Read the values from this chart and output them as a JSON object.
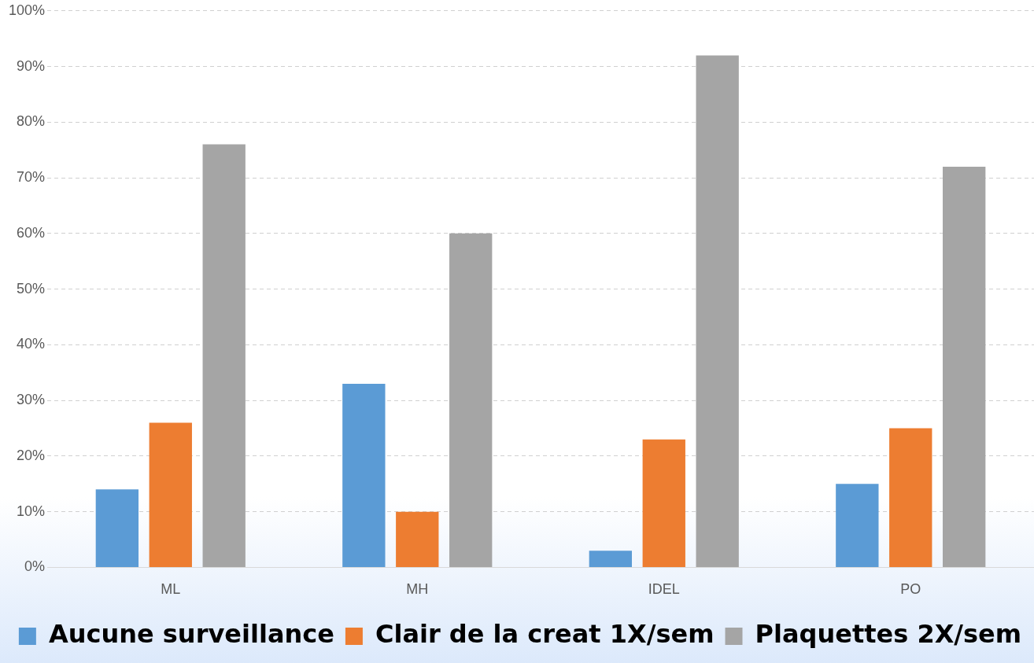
{
  "chart_data": {
    "type": "bar",
    "categories": [
      "ML",
      "MH",
      "IDEL",
      "PO"
    ],
    "series": [
      {
        "name": "Aucune surveillance",
        "color": "#5b9bd5",
        "values": [
          14,
          33,
          3,
          15
        ]
      },
      {
        "name": "Clair de la creat 1X/sem",
        "color": "#ed7d31",
        "values": [
          26,
          10,
          23,
          25
        ]
      },
      {
        "name": "Plaquettes 2X/sem",
        "color": "#a5a5a5",
        "values": [
          76,
          60,
          92,
          72
        ]
      }
    ],
    "ylim": [
      0,
      100
    ],
    "yticks": [
      {
        "value": 0,
        "label": "0%"
      },
      {
        "value": 10,
        "label": "10%"
      },
      {
        "value": 20,
        "label": "20%"
      },
      {
        "value": 30,
        "label": "30%"
      },
      {
        "value": 40,
        "label": "40%"
      },
      {
        "value": 50,
        "label": "50%"
      },
      {
        "value": 60,
        "label": "60%"
      },
      {
        "value": 70,
        "label": "70%"
      },
      {
        "value": 80,
        "label": "80%"
      },
      {
        "value": 90,
        "label": "90%"
      },
      {
        "value": 100,
        "label": "100%"
      }
    ],
    "grid": "y",
    "legend": "bottom"
  }
}
